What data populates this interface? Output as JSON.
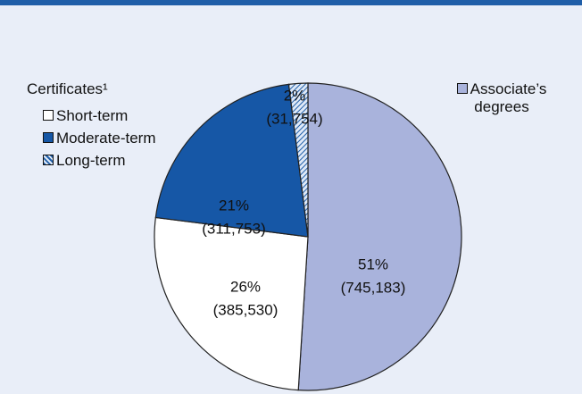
{
  "chart_data": {
    "type": "pie",
    "legend_title": "Certificates¹",
    "categories": [
      "Associate’s degrees",
      "Short-term",
      "Moderate-term",
      "Long-term"
    ],
    "values": [
      51,
      26,
      21,
      2
    ],
    "value_labels": [
      "51%",
      "26%",
      "21%",
      "2%"
    ],
    "counts": [
      745183,
      385530,
      311753,
      31754
    ],
    "count_labels": [
      "(745,183)",
      "(385,530)",
      "(311,753)",
      "(31,754)"
    ],
    "colors": [
      "#a9b3dc",
      "#ffffff",
      "#1657a6",
      "hatch"
    ]
  }
}
